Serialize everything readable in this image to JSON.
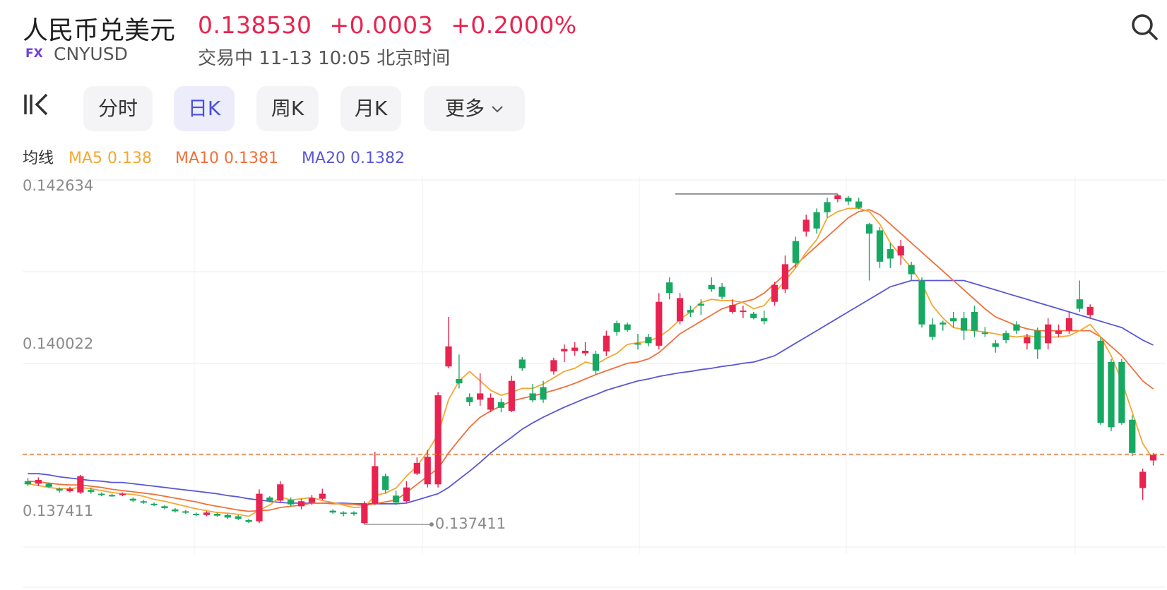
{
  "header": {
    "title": "人民币兑美元",
    "price": "0.138530",
    "change": "+0.0003",
    "change_pct": "+0.2000%",
    "badge": "FX",
    "symbol": "CNYUSD",
    "status": "交易中 11-13 10:05 北京时间"
  },
  "tabs": [
    {
      "label": "分时",
      "active": false
    },
    {
      "label": "日K",
      "active": true
    },
    {
      "label": "周K",
      "active": false
    },
    {
      "label": "月K",
      "active": false
    },
    {
      "label": "更多",
      "active": false
    }
  ],
  "ma_legend": {
    "label": "均线",
    "ma5": "MA5 0.138",
    "ma10": "MA10 0.1381",
    "ma20": "MA20 0.1382"
  },
  "colors": {
    "up": "#e8234f",
    "down": "#17a862",
    "ma5": "#f5a733",
    "ma10": "#f0703a",
    "ma20": "#5a57d6",
    "accent": "#4a50d8",
    "last_price_line": "#e07a3a"
  },
  "chart_data": {
    "type": "candlestick",
    "y_ticks": [
      "0.142634",
      "0.140022",
      "0.137411"
    ],
    "ylim": [
      0.13722,
      0.14287
    ],
    "grid": true,
    "max_marker": "0.142634",
    "min_marker": "0.137411",
    "last_price": 0.13853,
    "candles": [
      [
        0.1381,
        0.13805,
        0.13815,
        0.13802
      ],
      [
        0.13806,
        0.13812,
        0.13816,
        0.13802
      ],
      [
        0.13806,
        0.13801,
        0.13808,
        0.13799
      ],
      [
        0.13798,
        0.13795,
        0.138,
        0.13792
      ],
      [
        0.13794,
        0.13798,
        0.13801,
        0.13792
      ],
      [
        0.13792,
        0.13818,
        0.1382,
        0.1379
      ],
      [
        0.13796,
        0.13793,
        0.138,
        0.1379
      ],
      [
        0.1379,
        0.13788,
        0.13792,
        0.13786
      ],
      [
        0.13788,
        0.13787,
        0.1379,
        0.13785
      ],
      [
        0.13788,
        0.1379,
        0.13792,
        0.13786
      ],
      [
        0.13782,
        0.13779,
        0.13784,
        0.13777
      ],
      [
        0.13778,
        0.13776,
        0.1378,
        0.13774
      ],
      [
        0.13774,
        0.13772,
        0.13776,
        0.1377
      ],
      [
        0.1377,
        0.13767,
        0.13772,
        0.13765
      ],
      [
        0.13765,
        0.13762,
        0.13767,
        0.1376
      ],
      [
        0.13762,
        0.1376,
        0.13764,
        0.13758
      ],
      [
        0.13758,
        0.13756,
        0.1376,
        0.13754
      ],
      [
        0.13756,
        0.1376,
        0.13762,
        0.13754
      ],
      [
        0.13758,
        0.13755,
        0.1376,
        0.13753
      ],
      [
        0.13756,
        0.13752,
        0.13758,
        0.1375
      ],
      [
        0.13754,
        0.1375,
        0.13756,
        0.13748
      ],
      [
        0.13748,
        0.13745,
        0.1375,
        0.13743
      ],
      [
        0.13746,
        0.1379,
        0.13797,
        0.13743
      ],
      [
        0.13784,
        0.13779,
        0.13786,
        0.13776
      ],
      [
        0.13779,
        0.13805,
        0.1381,
        0.13776
      ],
      [
        0.1378,
        0.13773,
        0.13784,
        0.1377
      ],
      [
        0.1377,
        0.13778,
        0.13782,
        0.13765
      ],
      [
        0.13776,
        0.13783,
        0.13788,
        0.13772
      ],
      [
        0.13782,
        0.1379,
        0.13798,
        0.1378
      ],
      [
        0.13763,
        0.1376,
        0.13765,
        0.13758
      ],
      [
        0.1376,
        0.13759,
        0.13762,
        0.13754
      ],
      [
        0.1376,
        0.13758,
        0.13762,
        0.13755
      ],
      [
        0.13743,
        0.13774,
        0.13778,
        0.13741
      ],
      [
        0.13774,
        0.13834,
        0.13857,
        0.13772
      ],
      [
        0.13818,
        0.13796,
        0.13822,
        0.1379
      ],
      [
        0.13787,
        0.13776,
        0.13795,
        0.13772
      ],
      [
        0.13778,
        0.138,
        0.1381,
        0.13776
      ],
      [
        0.13822,
        0.13839,
        0.13848,
        0.1382
      ],
      [
        0.13805,
        0.13849,
        0.1386,
        0.138
      ],
      [
        0.13805,
        0.13947,
        0.13952,
        0.138
      ],
      [
        0.13993,
        0.14025,
        0.14072,
        0.1399
      ],
      [
        0.13973,
        0.13966,
        0.14012,
        0.13958
      ],
      [
        0.13944,
        0.13936,
        0.1395,
        0.1393
      ],
      [
        0.1394,
        0.1395,
        0.13982,
        0.1393
      ],
      [
        0.13924,
        0.13943,
        0.1395,
        0.1392
      ],
      [
        0.13936,
        0.13927,
        0.13942,
        0.1392
      ],
      [
        0.13922,
        0.1397,
        0.13978,
        0.1392
      ],
      [
        0.14004,
        0.1399,
        0.14008,
        0.13986
      ],
      [
        0.1395,
        0.13939,
        0.13965,
        0.13936
      ],
      [
        0.1396,
        0.1394,
        0.1397,
        0.13935
      ],
      [
        0.13985,
        0.14003,
        0.14007,
        0.1398
      ],
      [
        0.14017,
        0.14021,
        0.14028,
        0.14
      ],
      [
        0.14018,
        0.14023,
        0.14032,
        0.1401
      ],
      [
        0.14014,
        0.14018,
        0.14032,
        0.1401
      ],
      [
        0.14013,
        0.13986,
        0.14018,
        0.1398
      ],
      [
        0.14017,
        0.14042,
        0.1405,
        0.1401
      ],
      [
        0.14062,
        0.14048,
        0.14066,
        0.14042
      ],
      [
        0.1406,
        0.14051,
        0.14063,
        0.14048
      ],
      [
        0.1403,
        0.14028,
        0.14045,
        0.1402
      ],
      [
        0.1404,
        0.1403,
        0.14045,
        0.14025
      ],
      [
        0.14026,
        0.14096,
        0.1411,
        0.1402
      ],
      [
        0.14127,
        0.1411,
        0.14135,
        0.141
      ],
      [
        0.14065,
        0.14102,
        0.1411,
        0.1406
      ],
      [
        0.14083,
        0.14079,
        0.1409,
        0.14072
      ],
      [
        0.14093,
        0.1409,
        0.141,
        0.14075
      ],
      [
        0.14123,
        0.14116,
        0.14135,
        0.14112
      ],
      [
        0.1412,
        0.14104,
        0.14126,
        0.141
      ],
      [
        0.1408,
        0.14091,
        0.141,
        0.14077
      ],
      [
        0.1408,
        0.14082,
        0.1409,
        0.1407
      ],
      [
        0.14077,
        0.1407,
        0.1408,
        0.14068
      ],
      [
        0.1407,
        0.14065,
        0.14082,
        0.1406
      ],
      [
        0.14096,
        0.14123,
        0.14128,
        0.1409
      ],
      [
        0.14116,
        0.14156,
        0.1417,
        0.1411
      ],
      [
        0.14193,
        0.14158,
        0.142,
        0.1415
      ],
      [
        0.14208,
        0.14227,
        0.14235,
        0.142
      ],
      [
        0.14239,
        0.14213,
        0.14245,
        0.14205
      ],
      [
        0.14255,
        0.14239,
        0.14262,
        0.1423
      ],
      [
        0.1426,
        0.14266,
        0.14268,
        0.14255
      ],
      [
        0.14262,
        0.14256,
        0.14265,
        0.1425
      ],
      [
        0.14256,
        0.14246,
        0.14262,
        0.14244
      ],
      [
        0.1422,
        0.14205,
        0.14222,
        0.1413
      ],
      [
        0.1421,
        0.1416,
        0.14215,
        0.1415
      ],
      [
        0.1418,
        0.14165,
        0.1419,
        0.1415
      ],
      [
        0.1417,
        0.14185,
        0.14195,
        0.14155
      ],
      [
        0.14155,
        0.1414,
        0.1416,
        0.1413
      ],
      [
        0.1413,
        0.1406,
        0.14135,
        0.14055
      ],
      [
        0.1406,
        0.1404,
        0.1407,
        0.14035
      ],
      [
        0.14063,
        0.1406,
        0.14066,
        0.1405
      ],
      [
        0.1407,
        0.14065,
        0.1408,
        0.14055
      ],
      [
        0.1407,
        0.1405,
        0.1408,
        0.14035
      ],
      [
        0.1408,
        0.1405,
        0.1409,
        0.1404
      ],
      [
        0.14047,
        0.14045,
        0.14056,
        0.1404
      ],
      [
        0.1403,
        0.14024,
        0.14035,
        0.14015
      ],
      [
        0.14046,
        0.14035,
        0.1405,
        0.1403
      ],
      [
        0.1406,
        0.1405,
        0.14065,
        0.14045
      ],
      [
        0.1403,
        0.1404,
        0.14045,
        0.1402
      ],
      [
        0.1405,
        0.1402,
        0.14055,
        0.14005
      ],
      [
        0.1403,
        0.1406,
        0.1407,
        0.1402
      ],
      [
        0.14045,
        0.1405,
        0.1406,
        0.1404
      ],
      [
        0.1405,
        0.1407,
        0.1408,
        0.14045
      ],
      [
        0.141,
        0.14085,
        0.1413,
        0.1408
      ],
      [
        0.14075,
        0.14088,
        0.14092,
        0.1407
      ],
      [
        0.14034,
        0.13903,
        0.1404,
        0.139
      ],
      [
        0.14,
        0.13896,
        0.14005,
        0.1389
      ],
      [
        0.14,
        0.13903,
        0.14005,
        0.139
      ],
      [
        0.13908,
        0.13855,
        0.13915,
        0.1385
      ],
      [
        0.13799,
        0.13825,
        0.1383,
        0.1378
      ],
      [
        0.13843,
        0.13852,
        0.13855,
        0.13835
      ]
    ],
    "ma5": [
      0.13806,
      0.13803,
      0.138,
      0.13798,
      0.13798,
      0.138,
      0.13798,
      0.13795,
      0.13792,
      0.1379,
      0.13789,
      0.13786,
      0.13781,
      0.13778,
      0.13774,
      0.1377,
      0.13766,
      0.13763,
      0.1376,
      0.13759,
      0.13757,
      0.13754,
      0.13764,
      0.13772,
      0.13785,
      0.1378,
      0.13782,
      0.13784,
      0.13779,
      0.13776,
      0.13772,
      0.13768,
      0.13769,
      0.13787,
      0.13791,
      0.13799,
      0.13818,
      0.13834,
      0.13857,
      0.13885,
      0.1394,
      0.1397,
      0.13985,
      0.1397,
      0.13955,
      0.13947,
      0.13952,
      0.13958,
      0.13958,
      0.13965,
      0.13975,
      0.13985,
      0.1399,
      0.14,
      0.13996,
      0.14006,
      0.14014,
      0.14028,
      0.14031,
      0.14033,
      0.1404,
      0.14052,
      0.14068,
      0.1408,
      0.14095,
      0.141,
      0.14098,
      0.14098,
      0.14095,
      0.14085,
      0.1409,
      0.1411,
      0.1413,
      0.1415,
      0.14175,
      0.14195,
      0.1423,
      0.1424,
      0.14245,
      0.14245,
      0.1424,
      0.1422,
      0.1419,
      0.1417,
      0.1415,
      0.14125,
      0.1409,
      0.1407,
      0.14055,
      0.14052,
      0.1405,
      0.14048,
      0.14045,
      0.14042,
      0.1404,
      0.14042,
      0.1404,
      0.1404,
      0.1404,
      0.14042,
      0.1405,
      0.1406,
      0.1404,
      0.1401,
      0.1397,
      0.1392,
      0.1387,
      0.13845
    ],
    "ma10": [
      0.1381,
      0.13809,
      0.13807,
      0.13805,
      0.13804,
      0.13804,
      0.13802,
      0.138,
      0.13797,
      0.13795,
      0.13793,
      0.13791,
      0.13789,
      0.13786,
      0.13783,
      0.1378,
      0.13777,
      0.13773,
      0.1377,
      0.13767,
      0.13764,
      0.13762,
      0.13763,
      0.13764,
      0.13768,
      0.1377,
      0.13772,
      0.13775,
      0.13775,
      0.13774,
      0.13774,
      0.13773,
      0.13771,
      0.13774,
      0.13777,
      0.1378,
      0.13792,
      0.13805,
      0.13818,
      0.1383,
      0.13855,
      0.13876,
      0.13896,
      0.13912,
      0.13922,
      0.1393,
      0.13938,
      0.13942,
      0.13946,
      0.1395,
      0.13955,
      0.1396,
      0.13966,
      0.13973,
      0.1398,
      0.13986,
      0.13992,
      0.13998,
      0.14,
      0.14005,
      0.14015,
      0.1403,
      0.14045,
      0.14055,
      0.14065,
      0.14075,
      0.14085,
      0.1409,
      0.14096,
      0.141,
      0.1411,
      0.14125,
      0.1414,
      0.14155,
      0.1417,
      0.14185,
      0.142,
      0.14215,
      0.1423,
      0.1424,
      0.14243,
      0.14235,
      0.1422,
      0.14205,
      0.1419,
      0.14175,
      0.1416,
      0.14145,
      0.1413,
      0.14115,
      0.141,
      0.14085,
      0.14072,
      0.14065,
      0.14058,
      0.14053,
      0.1405,
      0.1405,
      0.1405,
      0.1405,
      0.1405,
      0.1405,
      0.1404,
      0.14025,
      0.1401,
      0.1399,
      0.1397,
      0.13957
    ],
    "ma20": [
      0.13822,
      0.13822,
      0.1382,
      0.13817,
      0.13815,
      0.13813,
      0.13811,
      0.1381,
      0.13808,
      0.13808,
      0.13806,
      0.13804,
      0.13802,
      0.138,
      0.13798,
      0.13796,
      0.13794,
      0.13792,
      0.1379,
      0.13787,
      0.13785,
      0.13782,
      0.1378,
      0.13778,
      0.13776,
      0.13775,
      0.13775,
      0.13775,
      0.13775,
      0.13775,
      0.13775,
      0.13774,
      0.13774,
      0.13774,
      0.13774,
      0.13774,
      0.13775,
      0.1378,
      0.13785,
      0.1379,
      0.138,
      0.13813,
      0.13826,
      0.1384,
      0.13855,
      0.13868,
      0.1388,
      0.13893,
      0.13903,
      0.13912,
      0.1392,
      0.13928,
      0.13935,
      0.13942,
      0.13948,
      0.13955,
      0.1396,
      0.13965,
      0.1397,
      0.13973,
      0.13977,
      0.1398,
      0.13983,
      0.13985,
      0.13988,
      0.1399,
      0.13993,
      0.13995,
      0.13998,
      0.14,
      0.14005,
      0.1401,
      0.1402,
      0.1403,
      0.1404,
      0.1405,
      0.1406,
      0.1407,
      0.1408,
      0.1409,
      0.141,
      0.1411,
      0.1412,
      0.14125,
      0.1413,
      0.1413,
      0.1413,
      0.1413,
      0.1413,
      0.1413,
      0.14125,
      0.1412,
      0.14115,
      0.1411,
      0.14105,
      0.141,
      0.14095,
      0.1409,
      0.14085,
      0.1408,
      0.14075,
      0.1407,
      0.14065,
      0.1406,
      0.14055,
      0.14045,
      0.14035,
      0.14027
    ]
  }
}
